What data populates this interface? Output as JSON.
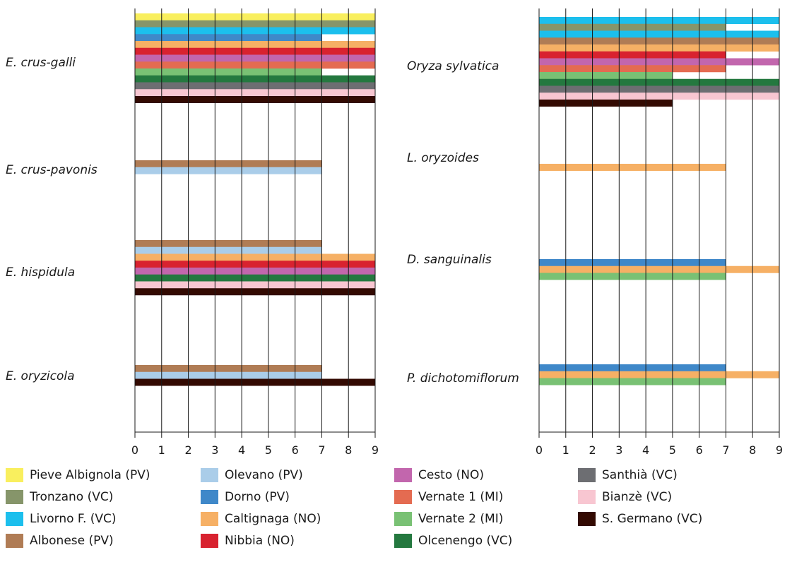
{
  "sites": [
    {
      "key": "pieve",
      "name": "Pieve Albignola (PV)",
      "color": "#f9ef5e"
    },
    {
      "key": "tronzano",
      "name": "Tronzano (VC)",
      "color": "#86956a"
    },
    {
      "key": "livorno",
      "name": "Livorno F. (VC)",
      "color": "#1cbfed"
    },
    {
      "key": "albonese",
      "name": "Albonese (PV)",
      "color": "#b07c55"
    },
    {
      "key": "olevano",
      "name": "Olevano (PV)",
      "color": "#aacde9"
    },
    {
      "key": "dorno",
      "name": "Dorno (PV)",
      "color": "#3f88c9"
    },
    {
      "key": "caltignaga",
      "name": "Caltignaga (NO)",
      "color": "#f6b065"
    },
    {
      "key": "nibbia",
      "name": "Nibbia (NO)",
      "color": "#d8222f"
    },
    {
      "key": "cesto",
      "name": "Cesto (NO)",
      "color": "#c266ad"
    },
    {
      "key": "vernate1",
      "name": "Vernate 1 (MI)",
      "color": "#e46b51"
    },
    {
      "key": "vernate2",
      "name": "Vernate 2 (MI)",
      "color": "#79c174"
    },
    {
      "key": "olcenengo",
      "name": "Olcenengo (VC)",
      "color": "#24783f"
    },
    {
      "key": "santhia",
      "name": "Santhià (VC)",
      "color": "#6d6e72"
    },
    {
      "key": "bianze",
      "name": "Bianzè (VC)",
      "color": "#f8c6d1"
    },
    {
      "key": "sgermano",
      "name": "S. Germano (VC)",
      "color": "#330a02"
    }
  ],
  "chart_data": [
    {
      "type": "bar",
      "orientation": "horizontal",
      "xlim": [
        0,
        9
      ],
      "xticks": [
        "0",
        "1",
        "2",
        "3",
        "4",
        "5",
        "6",
        "7",
        "8",
        "9"
      ],
      "grid": "vertical",
      "groups": [
        {
          "species": "E. crus-galli",
          "bars": [
            {
              "site": "Pieve Albignola (PV)",
              "value": 9
            },
            {
              "site": "Tronzano (VC)",
              "value": 9
            },
            {
              "site": "Livorno F. (VC)",
              "value": 9
            },
            {
              "site": "Dorno (PV)",
              "value": 7
            },
            {
              "site": "Caltignaga (NO)",
              "value": 9
            },
            {
              "site": "Nibbia (NO)",
              "value": 9
            },
            {
              "site": "Cesto (NO)",
              "value": 9
            },
            {
              "site": "Vernate 1 (MI)",
              "value": 9
            },
            {
              "site": "Vernate 2 (MI)",
              "value": 7
            },
            {
              "site": "Olcenengo (VC)",
              "value": 9
            },
            {
              "site": "Santhià (VC)",
              "value": 9
            },
            {
              "site": "Bianzè (VC)",
              "value": 9
            },
            {
              "site": "S. Germano (VC)",
              "value": 9
            }
          ]
        },
        {
          "species": "E. crus-pavonis",
          "bars": [
            {
              "site": "Albonese (PV)",
              "value": 7
            },
            {
              "site": "Olevano (PV)",
              "value": 7
            }
          ]
        },
        {
          "species": "E. hispidula",
          "bars": [
            {
              "site": "Albonese (PV)",
              "value": 7
            },
            {
              "site": "Olevano (PV)",
              "value": 7
            },
            {
              "site": "Caltignaga (NO)",
              "value": 9
            },
            {
              "site": "Nibbia (NO)",
              "value": 9
            },
            {
              "site": "Cesto (NO)",
              "value": 9
            },
            {
              "site": "Olcenengo (VC)",
              "value": 9
            },
            {
              "site": "Bianzè (VC)",
              "value": 9
            },
            {
              "site": "S. Germano (VC)",
              "value": 9
            }
          ]
        },
        {
          "species": "E. oryzicola",
          "bars": [
            {
              "site": "Albonese (PV)",
              "value": 7
            },
            {
              "site": "Olevano (PV)",
              "value": 7
            },
            {
              "site": "S. Germano (VC)",
              "value": 9
            }
          ]
        }
      ]
    },
    {
      "type": "bar",
      "orientation": "horizontal",
      "xlim": [
        0,
        9
      ],
      "xticks": [
        "0",
        "1",
        "2",
        "3",
        "4",
        "5",
        "6",
        "7",
        "8",
        "9"
      ],
      "grid": "vertical",
      "groups": [
        {
          "species": "Oryza sylvatica",
          "bars": [
            {
              "site": "Livorno F. (VC)",
              "value": 9
            },
            {
              "site": "Tronzano (VC)",
              "value": 7
            },
            {
              "site": "Livorno F. (VC)",
              "value": 9
            },
            {
              "site": "Albonese (PV)",
              "value": 9
            },
            {
              "site": "Caltignaga (NO)",
              "value": 9
            },
            {
              "site": "Nibbia (NO)",
              "value": 7
            },
            {
              "site": "Cesto (NO)",
              "value": 9
            },
            {
              "site": "Vernate 1 (MI)",
              "value": 7
            },
            {
              "site": "Vernate 2 (MI)",
              "value": 5
            },
            {
              "site": "Olcenengo (VC)",
              "value": 9
            },
            {
              "site": "Santhià (VC)",
              "value": 9
            },
            {
              "site": "Bianzè (VC)",
              "value": 9
            },
            {
              "site": "S. Germano (VC)",
              "value": 5
            }
          ]
        },
        {
          "species": "L. oryzoides",
          "bars": [
            {
              "site": "Caltignaga (NO)",
              "value": 7
            }
          ]
        },
        {
          "species": "D. sanguinalis",
          "bars": [
            {
              "site": "Dorno (PV)",
              "value": 7
            },
            {
              "site": "Caltignaga (NO)",
              "value": 9
            },
            {
              "site": "Vernate 2 (MI)",
              "value": 7
            }
          ]
        },
        {
          "species": "P. dichotomiflorum",
          "bars": [
            {
              "site": "Dorno (PV)",
              "value": 7
            },
            {
              "site": "Caltignaga (NO)",
              "value": 9
            },
            {
              "site": "Vernate 2 (MI)",
              "value": 7
            }
          ]
        }
      ]
    }
  ]
}
